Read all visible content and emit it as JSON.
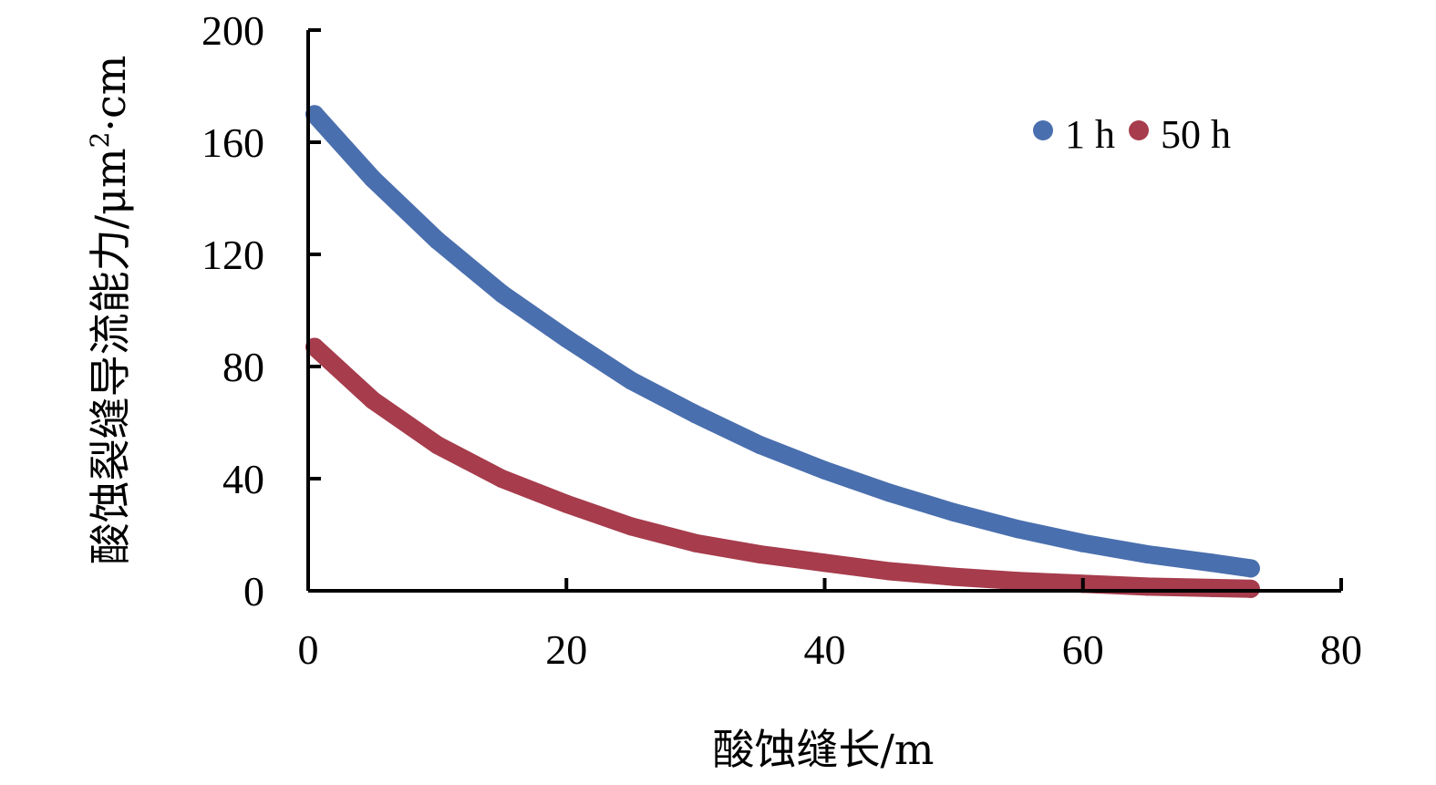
{
  "chart_data": {
    "type": "scatter",
    "xlabel": "酸蚀缝长/m",
    "ylabel_main": "酸蚀裂缝导流能力/μm",
    "ylabel_sup": "2",
    "ylabel_tail": "·cm",
    "xlim": [
      0,
      80
    ],
    "ylim": [
      0,
      200
    ],
    "xticks": [
      "0",
      "20",
      "40",
      "60",
      "80"
    ],
    "yticks": [
      "0",
      "40",
      "80",
      "120",
      "160",
      "200"
    ],
    "grid": false,
    "legend_position": "top-right",
    "series": [
      {
        "name": "1 h",
        "color": "#4a6fae",
        "x": [
          0.5,
          5,
          10,
          15,
          20,
          25,
          30,
          35,
          40,
          45,
          50,
          55,
          60,
          65,
          70,
          73
        ],
        "y": [
          170,
          147,
          125,
          106,
          90,
          75,
          63,
          52,
          43,
          35,
          28,
          22,
          17,
          13,
          10,
          8
        ]
      },
      {
        "name": "50 h",
        "color": "#a63c4c",
        "x": [
          0.5,
          5,
          10,
          15,
          20,
          25,
          30,
          35,
          40,
          45,
          50,
          55,
          60,
          65,
          70,
          73
        ],
        "y": [
          87,
          68,
          52,
          40,
          31,
          23,
          17,
          13,
          10,
          7,
          5,
          3.5,
          2.5,
          1.5,
          1,
          0.7
        ]
      }
    ]
  }
}
